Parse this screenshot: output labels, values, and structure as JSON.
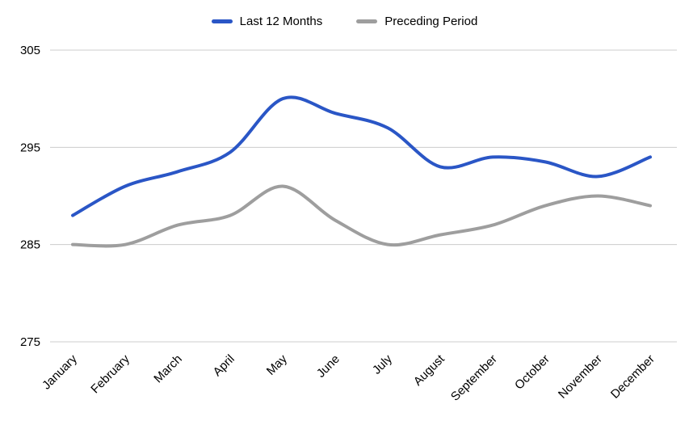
{
  "chart_data": {
    "type": "line",
    "title": "",
    "xlabel": "",
    "ylabel": "",
    "categories": [
      "January",
      "February",
      "March",
      "April",
      "May",
      "June",
      "July",
      "August",
      "September",
      "October",
      "November",
      "December"
    ],
    "series": [
      {
        "name": "Last 12 Months",
        "color": "#2a56c6",
        "values": [
          288,
          291,
          292.5,
          294.5,
          300,
          298.5,
          297,
          293,
          294,
          293.5,
          292,
          294
        ]
      },
      {
        "name": "Preceding Period",
        "color": "#9e9e9e",
        "values": [
          285,
          285,
          287,
          288,
          291,
          287.5,
          285,
          286,
          287,
          289,
          290,
          289
        ]
      }
    ],
    "ylim": [
      275,
      305
    ],
    "yticks": [
      275,
      285,
      295,
      305
    ],
    "grid": true,
    "gridline_color": "#cccccc",
    "legend_position": "top",
    "line_style": "smooth"
  }
}
